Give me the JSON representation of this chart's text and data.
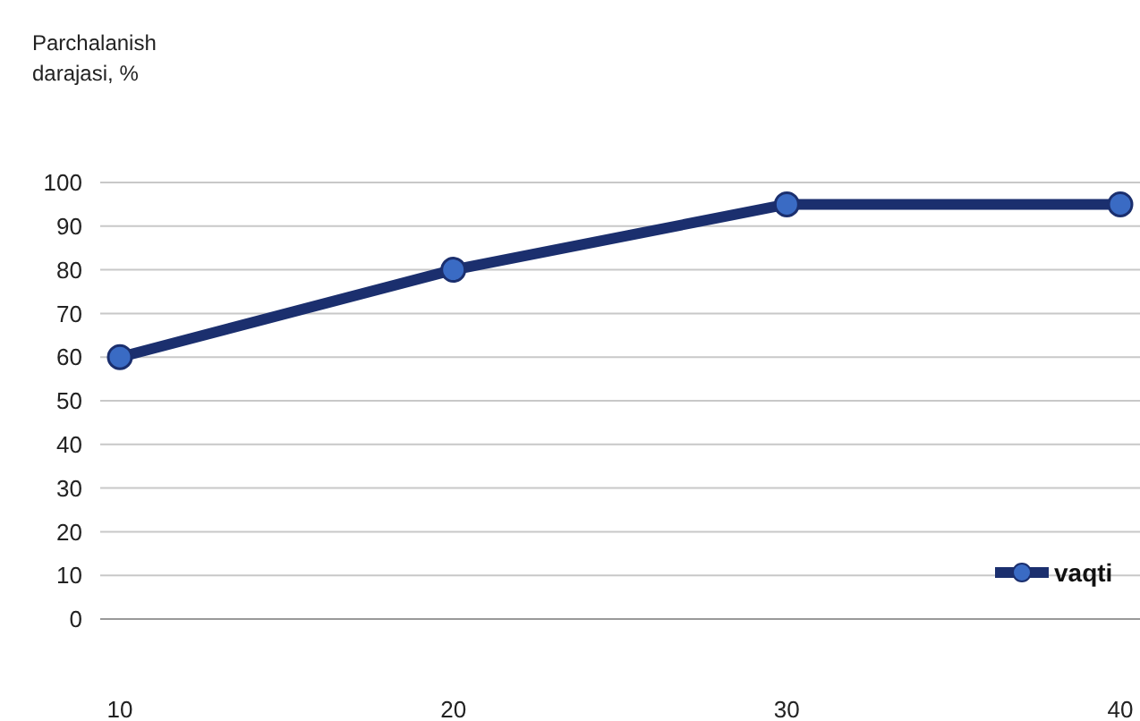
{
  "chart_data": {
    "type": "line",
    "ylabel": "Parchalanish darajasi, %",
    "x": [
      10,
      20,
      30,
      40
    ],
    "series": [
      {
        "name": "vaqti",
        "color": "#1b2f6e",
        "values": [
          60,
          80,
          95,
          95
        ]
      }
    ],
    "xlim": [
      10,
      40
    ],
    "xticks": [
      10,
      20,
      30,
      40
    ],
    "ylim": [
      0,
      100
    ],
    "yticks": [
      0,
      10,
      20,
      30,
      40,
      50,
      60,
      70,
      80,
      90,
      100
    ],
    "grid": "y",
    "legend": "bottom right",
    "marker": "circle",
    "line_style": "solid"
  }
}
